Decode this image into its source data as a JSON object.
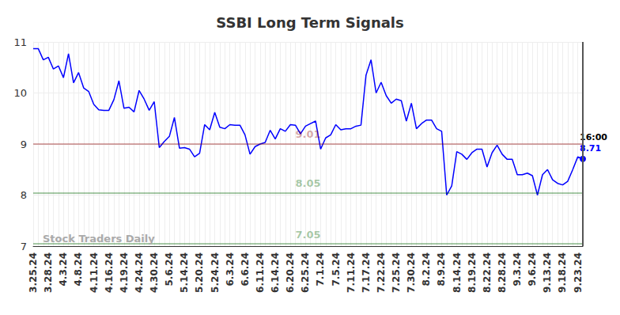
{
  "chart_data": {
    "type": "line",
    "title": "SSBI Long Term Signals",
    "watermark": "Stock Traders Daily",
    "categories": [
      "3.25.24",
      null,
      null,
      "3.28.24",
      null,
      null,
      "4.3.24",
      null,
      null,
      "4.8.24",
      null,
      null,
      "4.11.24",
      null,
      null,
      "4.16.24",
      null,
      null,
      "4.19.24",
      null,
      null,
      "4.24.24",
      null,
      null,
      "4.30.24",
      null,
      null,
      "5.6.24",
      null,
      null,
      "5.14.24",
      null,
      null,
      "5.20.24",
      null,
      null,
      "5.24.24",
      null,
      null,
      "6.3.24",
      null,
      null,
      "6.6.24",
      null,
      null,
      "6.11.24",
      null,
      null,
      "6.14.24",
      null,
      null,
      "6.20.24",
      null,
      null,
      "6.25.24",
      null,
      null,
      "7.1.24",
      null,
      null,
      "7.5.24",
      null,
      null,
      "7.11.24",
      null,
      null,
      "7.17.24",
      null,
      null,
      "7.22.24",
      null,
      null,
      "7.25.24",
      null,
      null,
      "7.30.24",
      null,
      null,
      "8.2.24",
      null,
      null,
      "8.9.24",
      null,
      null,
      "8.14.24",
      null,
      null,
      "8.19.24",
      null,
      null,
      "8.22.24",
      null,
      null,
      "8.28.24",
      null,
      null,
      "9.3.24",
      null,
      null,
      "9.6.24",
      null,
      null,
      "9.13.24",
      null,
      null,
      "9.18.24",
      null,
      null,
      "9.23.24",
      null
    ],
    "values": [
      10.87,
      10.87,
      10.65,
      10.7,
      10.47,
      10.53,
      10.3,
      10.77,
      10.2,
      10.4,
      10.1,
      10.03,
      9.78,
      9.67,
      9.66,
      9.66,
      9.87,
      10.24,
      9.7,
      9.72,
      9.63,
      10.05,
      9.88,
      9.66,
      9.83,
      8.93,
      9.05,
      9.15,
      9.52,
      8.92,
      8.93,
      8.9,
      8.75,
      8.82,
      9.38,
      9.28,
      9.62,
      9.33,
      9.3,
      9.38,
      9.37,
      9.37,
      9.18,
      8.8,
      8.95,
      9.0,
      9.03,
      9.27,
      9.1,
      9.3,
      9.25,
      9.38,
      9.37,
      9.2,
      9.35,
      9.4,
      9.45,
      8.9,
      9.12,
      9.18,
      9.38,
      9.28,
      9.3,
      9.3,
      9.35,
      9.37,
      10.35,
      10.65,
      10.0,
      10.21,
      9.95,
      9.8,
      9.88,
      9.85,
      9.45,
      9.8,
      9.3,
      9.4,
      9.47,
      9.47,
      9.3,
      9.25,
      8.0,
      8.18,
      8.85,
      8.8,
      8.7,
      8.83,
      8.9,
      8.9,
      8.55,
      8.83,
      8.98,
      8.8,
      8.7,
      8.7,
      8.4,
      8.4,
      8.43,
      8.38,
      8.0,
      8.4,
      8.5,
      8.3,
      8.23,
      8.2,
      8.27,
      8.5,
      8.75,
      8.71
    ],
    "color": "#0000ff",
    "ylim": [
      7,
      11
    ],
    "yticks": [
      7,
      8,
      9,
      10,
      11
    ],
    "grid": true,
    "annotations": [
      {
        "value": 9.01,
        "label": "9.01",
        "color": "#8b0000"
      },
      {
        "value": 8.05,
        "label": "8.05",
        "color": "#006400"
      },
      {
        "value": 7.05,
        "label": "7.05",
        "color": "#006400"
      }
    ],
    "end_annotation": {
      "text": "16:00",
      "value": 8.71
    }
  }
}
